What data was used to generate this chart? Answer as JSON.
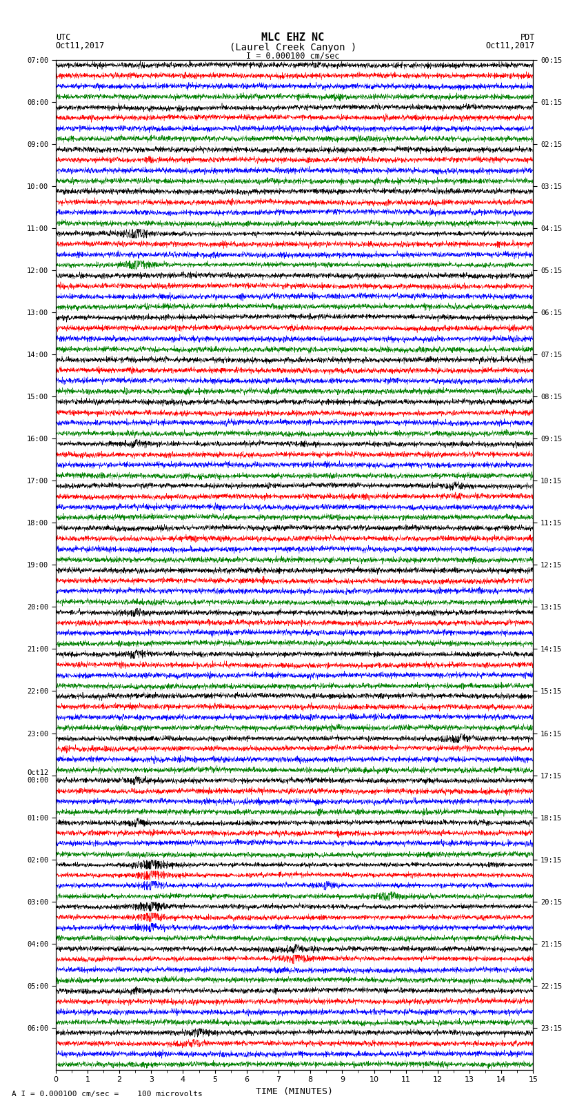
{
  "title_line1": "MLC EHZ NC",
  "title_line2": "(Laurel Creek Canyon )",
  "scale_label": "I = 0.000100 cm/sec",
  "footer_label": "A I = 0.000100 cm/sec =    100 microvolts",
  "utc_label": "UTC",
  "utc_date": "Oct11,2017",
  "pdt_label": "PDT",
  "pdt_date": "Oct11,2017",
  "xlabel": "TIME (MINUTES)",
  "left_times": [
    "07:00",
    "08:00",
    "09:00",
    "10:00",
    "11:00",
    "12:00",
    "13:00",
    "14:00",
    "15:00",
    "16:00",
    "17:00",
    "18:00",
    "19:00",
    "20:00",
    "21:00",
    "22:00",
    "23:00",
    "Oct12\n00:00",
    "01:00",
    "02:00",
    "03:00",
    "04:00",
    "05:00",
    "06:00"
  ],
  "right_times": [
    "00:15",
    "01:15",
    "02:15",
    "03:15",
    "04:15",
    "05:15",
    "06:15",
    "07:15",
    "08:15",
    "09:15",
    "10:15",
    "11:15",
    "12:15",
    "13:15",
    "14:15",
    "15:15",
    "16:15",
    "17:15",
    "18:15",
    "19:15",
    "20:15",
    "21:15",
    "22:15",
    "23:15"
  ],
  "n_rows": 96,
  "colors": [
    "black",
    "red",
    "blue",
    "green"
  ],
  "bg_color": "white",
  "x_min": 0,
  "x_max": 15,
  "fig_width": 8.5,
  "fig_height": 16.13,
  "dpi": 100,
  "n_points": 2700,
  "base_noise": 0.28,
  "large_events": {
    "16": {
      "times": [
        2.55
      ],
      "amps": [
        6.0
      ]
    },
    "19": {
      "times": [
        2.55
      ],
      "amps": [
        4.5
      ]
    },
    "36": {
      "times": [
        2.5
      ],
      "amps": [
        2.5
      ]
    },
    "40": {
      "times": [
        12.5
      ],
      "amps": [
        2.5
      ]
    },
    "52": {
      "times": [
        2.5
      ],
      "amps": [
        2.5
      ]
    },
    "56": {
      "times": [
        2.5
      ],
      "amps": [
        3.0
      ]
    },
    "64": {
      "times": [
        12.7
      ],
      "amps": [
        3.5
      ]
    },
    "68": {
      "times": [
        2.5
      ],
      "amps": [
        3.0
      ]
    },
    "72": {
      "times": [
        2.55
      ],
      "amps": [
        2.5
      ]
    },
    "76": {
      "times": [
        3.0
      ],
      "amps": [
        7.0
      ]
    },
    "77": {
      "times": [
        3.0
      ],
      "amps": [
        5.5
      ]
    },
    "78": {
      "times": [
        3.0,
        8.5
      ],
      "amps": [
        4.5,
        3.0
      ]
    },
    "79": {
      "times": [
        10.5
      ],
      "amps": [
        3.5
      ]
    },
    "80": {
      "times": [
        3.0
      ],
      "amps": [
        5.0
      ]
    },
    "81": {
      "times": [
        3.0
      ],
      "amps": [
        4.0
      ]
    },
    "82": {
      "times": [
        3.0
      ],
      "amps": [
        3.5
      ]
    },
    "84": {
      "times": [
        7.5
      ],
      "amps": [
        3.0
      ]
    },
    "85": {
      "times": [
        7.5
      ],
      "amps": [
        4.0
      ]
    },
    "88": {
      "times": [
        2.5
      ],
      "amps": [
        2.5
      ]
    },
    "92": {
      "times": [
        4.5
      ],
      "amps": [
        3.0
      ]
    },
    "93": {
      "times": [
        4.3
      ],
      "amps": [
        2.5
      ]
    }
  }
}
